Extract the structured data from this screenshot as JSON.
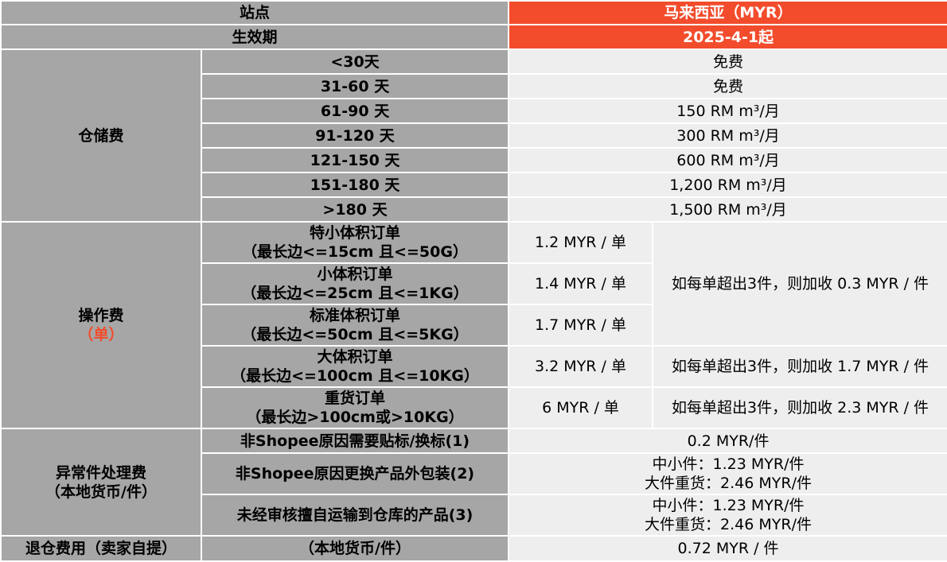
{
  "header": {
    "site_label": "站点",
    "site_value": "马来西亚（MYR）",
    "effective_label": "生效期",
    "effective_value": "2025-4-1起"
  },
  "storage": {
    "category": "仓储费",
    "rows": [
      {
        "period": "<30天",
        "fee": "免费"
      },
      {
        "period": "31-60 天",
        "fee": "免费"
      },
      {
        "period": "61-90 天",
        "fee": "150 RM m³/月"
      },
      {
        "period": "91-120 天",
        "fee": "300 RM m³/月"
      },
      {
        "period": "121-150 天",
        "fee": "600 RM m³/月"
      },
      {
        "period": "151-180 天",
        "fee": "1,200 RM m³/月"
      },
      {
        "period": ">180 天",
        "fee": "1,500 RM m³/月"
      }
    ]
  },
  "operation": {
    "category": "操作费",
    "category_unit": "（单）",
    "rows": [
      {
        "type": "特小体积订单",
        "spec": "（最长边<=15cm 且<=50G）",
        "fee": "1.2 MYR / 单"
      },
      {
        "type": "小体积订单",
        "spec": "（最长边<=25cm 且<=1KG）",
        "fee": "1.4 MYR / 单"
      },
      {
        "type": "标准体积订单",
        "spec": "（最长边<=50cm 且<=5KG）",
        "fee": "1.7 MYR / 单"
      },
      {
        "type": "大体积订单",
        "spec": "（最长边<=100cm 且<=10KG）",
        "fee": "3.2 MYR / 单"
      },
      {
        "type": "重货订单",
        "spec": "（最长边>100cm或>10KG）",
        "fee": "6 MYR / 单"
      }
    ],
    "extra_small_std": "如每单超出3件，则加收 0.3 MYR / 件",
    "extra_large": "如每单超出3件，则加收 1.7 MYR / 件",
    "extra_heavy": "如每单超出3件，则加收 2.3 MYR / 件"
  },
  "exception": {
    "category_line1": "异常件处理费",
    "category_line2": "（本地货币/件）",
    "rows": [
      {
        "item": "非Shopee原因需要贴标/换标(1)",
        "fee_line1": "0.2 MYR/件",
        "fee_line2": ""
      },
      {
        "item": "非Shopee原因更换产品外包装(2)",
        "fee_line1": "中小件：1.23 MYR/件",
        "fee_line2": "大件重货：2.46 MYR/件"
      },
      {
        "item": "未经审核擅自运输到仓库的产品(3)",
        "fee_line1": "中小件：1.23 MYR/件",
        "fee_line2": "大件重货：2.46 MYR/件"
      }
    ]
  },
  "return": {
    "category": "退仓费用（卖家自提）",
    "unit": "（本地货币/件）",
    "fee": "0.72 MYR / 件"
  },
  "colors": {
    "header_accent": "#f24c2c",
    "label_gray": "#a6a6a6",
    "value_bg": "#eeeeee"
  }
}
